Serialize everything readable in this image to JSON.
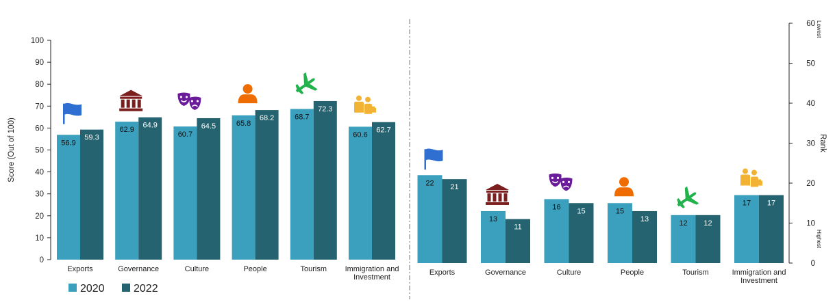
{
  "colors": {
    "s2020": "#3BA0BD",
    "s2022": "#24636F",
    "divider": "#777777",
    "axis": "#222222",
    "flag": "#2F6FD1",
    "governance": "#7B1E1E",
    "culture": "#6A1B9A",
    "people": "#EF6C00",
    "tourism": "#22B24C",
    "immigration": "#F2B233"
  },
  "legend": [
    {
      "label": "2020"
    },
    {
      "label": "2022"
    }
  ],
  "chart_data": [
    {
      "type": "bar",
      "categories": [
        "Exports",
        "Governance",
        "Culture",
        "People",
        "Tourism",
        "Immigration and Investment"
      ],
      "category_icons": [
        "flag-icon",
        "government-building-icon",
        "theater-masks-icon",
        "person-icon",
        "airplane-icon",
        "business-people-icon"
      ],
      "series": [
        {
          "name": "2020",
          "values": [
            56.9,
            62.9,
            60.7,
            65.8,
            68.7,
            60.6
          ],
          "labels": [
            "56.9",
            "62.9",
            "60.7",
            "65.8",
            "68.7",
            "60.6"
          ]
        },
        {
          "name": "2022",
          "values": [
            59.3,
            64.9,
            64.5,
            68.2,
            72.3,
            62.7
          ],
          "labels": [
            "59.3",
            "64.9",
            "64.5",
            "68.2",
            "72.3",
            "62.7"
          ]
        }
      ],
      "ylabel": "Score (Out of 100)",
      "ylim": [
        0,
        100
      ],
      "yticks": [
        0,
        10,
        20,
        30,
        40,
        50,
        60,
        70,
        80,
        90,
        100
      ],
      "legend_position": "bottom-left"
    },
    {
      "type": "bar",
      "categories": [
        "Exports",
        "Governance",
        "Culture",
        "People",
        "Tourism",
        "Immigration and Investment"
      ],
      "category_icons": [
        "flag-icon",
        "government-building-icon",
        "theater-masks-icon",
        "person-icon",
        "airplane-icon",
        "business-people-icon"
      ],
      "series": [
        {
          "name": "2020",
          "values": [
            22,
            13,
            16,
            15,
            12,
            17
          ],
          "labels": [
            "22",
            "13",
            "16",
            "15",
            "12",
            "17"
          ]
        },
        {
          "name": "2022",
          "values": [
            21,
            11,
            15,
            13,
            12,
            17
          ],
          "labels": [
            "21",
            "11",
            "15",
            "13",
            "12",
            "17"
          ]
        }
      ],
      "ylabel": "Rank",
      "yaxis_side": "right",
      "ylim": [
        0,
        60
      ],
      "yticks": [
        0,
        10,
        20,
        30,
        40,
        50,
        60
      ],
      "rank_scale_note_top": "Lowest",
      "rank_scale_note_bottom": "Highest"
    }
  ]
}
